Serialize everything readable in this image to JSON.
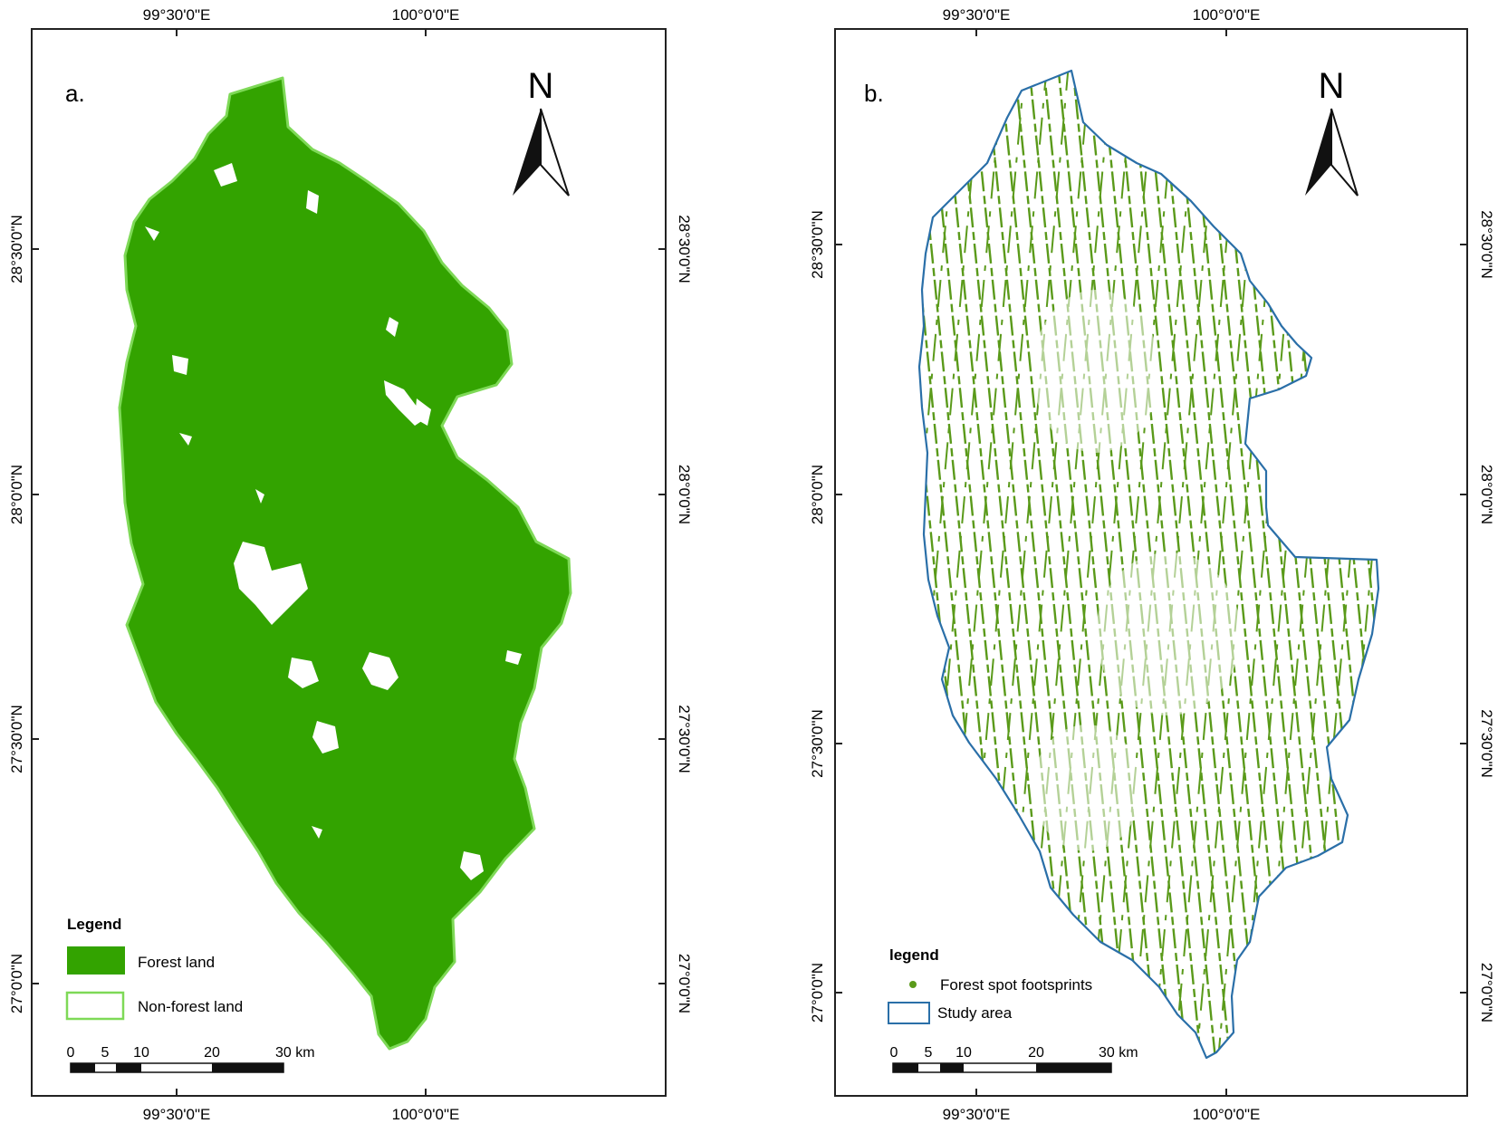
{
  "figure": {
    "panels": [
      {
        "id": "a",
        "label": "a.",
        "top_ticks": [
          "99°30'0\"E",
          "100°0'0\"E"
        ],
        "bottom_ticks": [
          "99°30'0\"E",
          "100°0'0\"E"
        ],
        "left_ticks": [
          "28°30'0\"N",
          "28°0'0\"N",
          "27°30'0\"N",
          "27°0'0\"N"
        ],
        "right_ticks": [
          "28°30'0\"N",
          "28°0'0\"N",
          "27°30'0\"N",
          "27°0'0\"N"
        ],
        "north_label": "N",
        "legend": {
          "title": "Legend",
          "items": [
            {
              "label": "Forest land",
              "swatch": "filled",
              "color": "#33a300"
            },
            {
              "label": "Non-forest land",
              "swatch": "outline",
              "color": "#7ed957"
            }
          ]
        },
        "scale": {
          "labels": [
            "0",
            "5",
            "10",
            "20",
            "30 km"
          ]
        }
      },
      {
        "id": "b",
        "label": "b.",
        "top_ticks": [
          "99°30'0\"E",
          "100°0'0\"E"
        ],
        "bottom_ticks": [
          "99°30'0\"E",
          "100°0'0\"E"
        ],
        "left_ticks": [
          "28°30'0\"N",
          "28°0'0\"N",
          "27°30'0\"N",
          "27°0'0\"N"
        ],
        "right_ticks": [
          "28°30'0\"N",
          "28°0'0\"N",
          "27°30'0\"N",
          "27°0'0\"N"
        ],
        "north_label": "N",
        "legend": {
          "title": "legend",
          "items": [
            {
              "label": "Forest spot footsprints",
              "swatch": "dot",
              "color": "#5a9a1a"
            },
            {
              "label": "Study area",
              "swatch": "outline",
              "color": "#2a6fa8"
            }
          ]
        },
        "scale": {
          "labels": [
            "0",
            "5",
            "10",
            "20",
            "30 km"
          ]
        }
      }
    ],
    "colors": {
      "forest": "#33a300",
      "forest_edge": "#7ed957",
      "footprint": "#5a9a1a",
      "study_outline": "#2a6fa8"
    }
  }
}
